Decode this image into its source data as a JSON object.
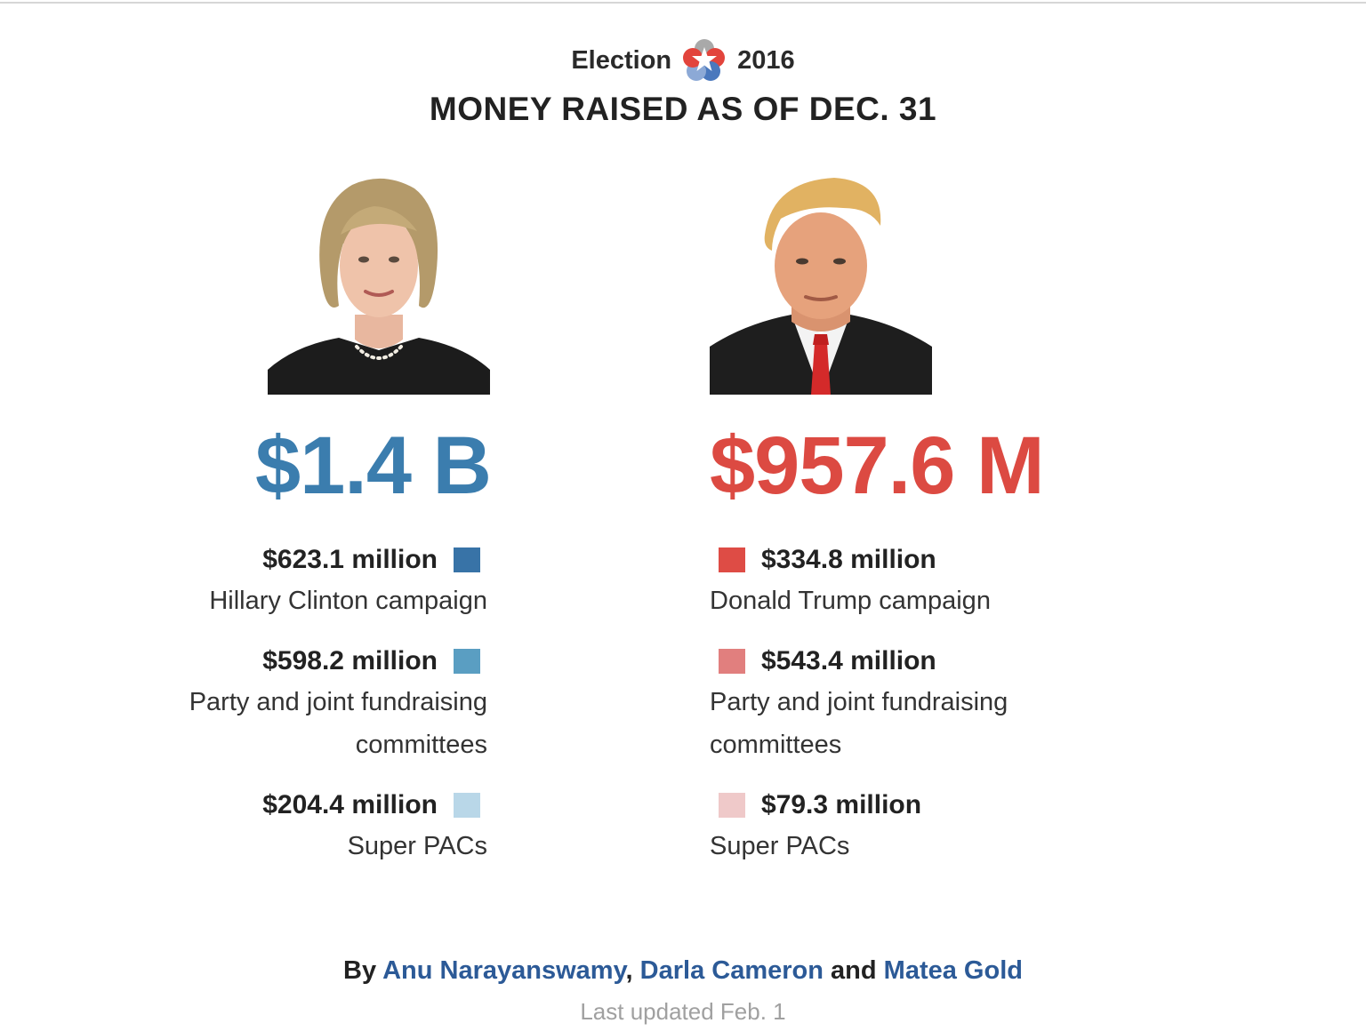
{
  "header": {
    "brand_left": "Election",
    "brand_right": "2016",
    "logo_icon": "election-star-logo",
    "title": "MONEY RAISED AS OF DEC. 31"
  },
  "candidates": [
    {
      "total": "$1.4 B",
      "total_color": "#3b7dae",
      "portrait_icon": "candidate-portrait",
      "items": [
        {
          "amount": "$623.1 million",
          "label": "Hillary Clinton campaign",
          "color": "#3873a7"
        },
        {
          "amount": "$598.2 million",
          "label_1": "Party and joint fundraising",
          "label_2": "committees",
          "color": "#5a9ec2"
        },
        {
          "amount": "$204.4 million",
          "label": "Super PACs",
          "color": "#b9d7e8"
        }
      ]
    },
    {
      "total": "$957.6 M",
      "total_color": "#dc4a42",
      "portrait_icon": "candidate-portrait",
      "items": [
        {
          "amount": "$334.8 million",
          "label": "Donald Trump campaign",
          "color": "#de4c45"
        },
        {
          "amount": "$543.4 million",
          "label_1": "Party and joint fundraising",
          "label_2": "committees",
          "color": "#e17f7e"
        },
        {
          "amount": "$79.3 million",
          "label": "Super PACs",
          "color": "#efc9c9"
        }
      ]
    }
  ],
  "byline": {
    "prefix": "By",
    "author_1": "Anu Narayanswamy",
    "sep_1": ",",
    "author_2": "Darla Cameron",
    "sep_2": "and",
    "author_3": "Matea Gold"
  },
  "updated": "Last updated Feb. 1"
}
